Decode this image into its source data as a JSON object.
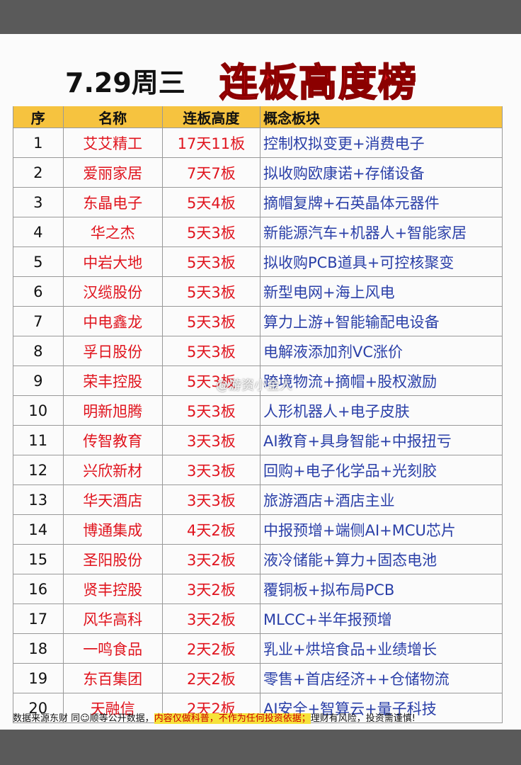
{
  "header": {
    "date": "7.29周三",
    "title": "连板高度榜"
  },
  "table": {
    "columns": [
      "序",
      "名称",
      "连板高度",
      "概念板块"
    ],
    "rows": [
      [
        1,
        "艾艾精工",
        "17天11板",
        "控制权拟变更+消费电子"
      ],
      [
        2,
        "爱丽家居",
        "7天7板",
        "拟收购欧康诺+存储设备"
      ],
      [
        3,
        "东晶电子",
        "5天4板",
        "摘帽复牌+石英晶体元器件"
      ],
      [
        4,
        "华之杰",
        "5天3板",
        "新能源汽车+机器人+智能家居"
      ],
      [
        5,
        "中岩大地",
        "5天3板",
        "拟收购PCB道具+可控核聚变"
      ],
      [
        6,
        "汉缆股份",
        "5天3板",
        "新型电网+海上风电"
      ],
      [
        7,
        "中电鑫龙",
        "5天3板",
        "算力上游+智能输配电设备"
      ],
      [
        8,
        "孚日股份",
        "5天3板",
        "电解液添加剂VC涨价"
      ],
      [
        9,
        "荣丰控股",
        "5天3板",
        "跨境物流+摘帽+股权激励"
      ],
      [
        10,
        "明新旭腾",
        "5天3板",
        "人形机器人+电子皮肤"
      ],
      [
        11,
        "传智教育",
        "3天3板",
        "AI教育+具身智能+中报扭亏"
      ],
      [
        12,
        "兴欣新材",
        "3天3板",
        "回购+电子化学品+光刻胶"
      ],
      [
        13,
        "华天酒店",
        "3天3板",
        "旅游酒店+酒店主业"
      ],
      [
        14,
        "博通集成",
        "4天2板",
        "中报预增+端侧AI+MCU芯片"
      ],
      [
        15,
        "圣阳股份",
        "3天2板",
        "液冷储能+算力+固态电池"
      ],
      [
        16,
        "贤丰控股",
        "3天2板",
        "覆铜板+拟布局PCB"
      ],
      [
        17,
        "风华高科",
        "3天2板",
        "MLCC+半年报预增"
      ],
      [
        18,
        "一鸣食品",
        "2天2板",
        "乳业+烘培食品+业绩增长"
      ],
      [
        19,
        "东百集团",
        "2天2板",
        "零售+首店经济++仓储物流"
      ],
      [
        20,
        "天融信",
        "2天2板",
        "AI安全+智算云+量子科技"
      ]
    ]
  },
  "watermark": "@游资小金人",
  "footer": {
    "source": "数据来源东财 同☺顺等公开数据，",
    "notice": "内容仅做科普，不作为任何投资依据；",
    "risk": "理财有风险，投资需谨慎!"
  }
}
